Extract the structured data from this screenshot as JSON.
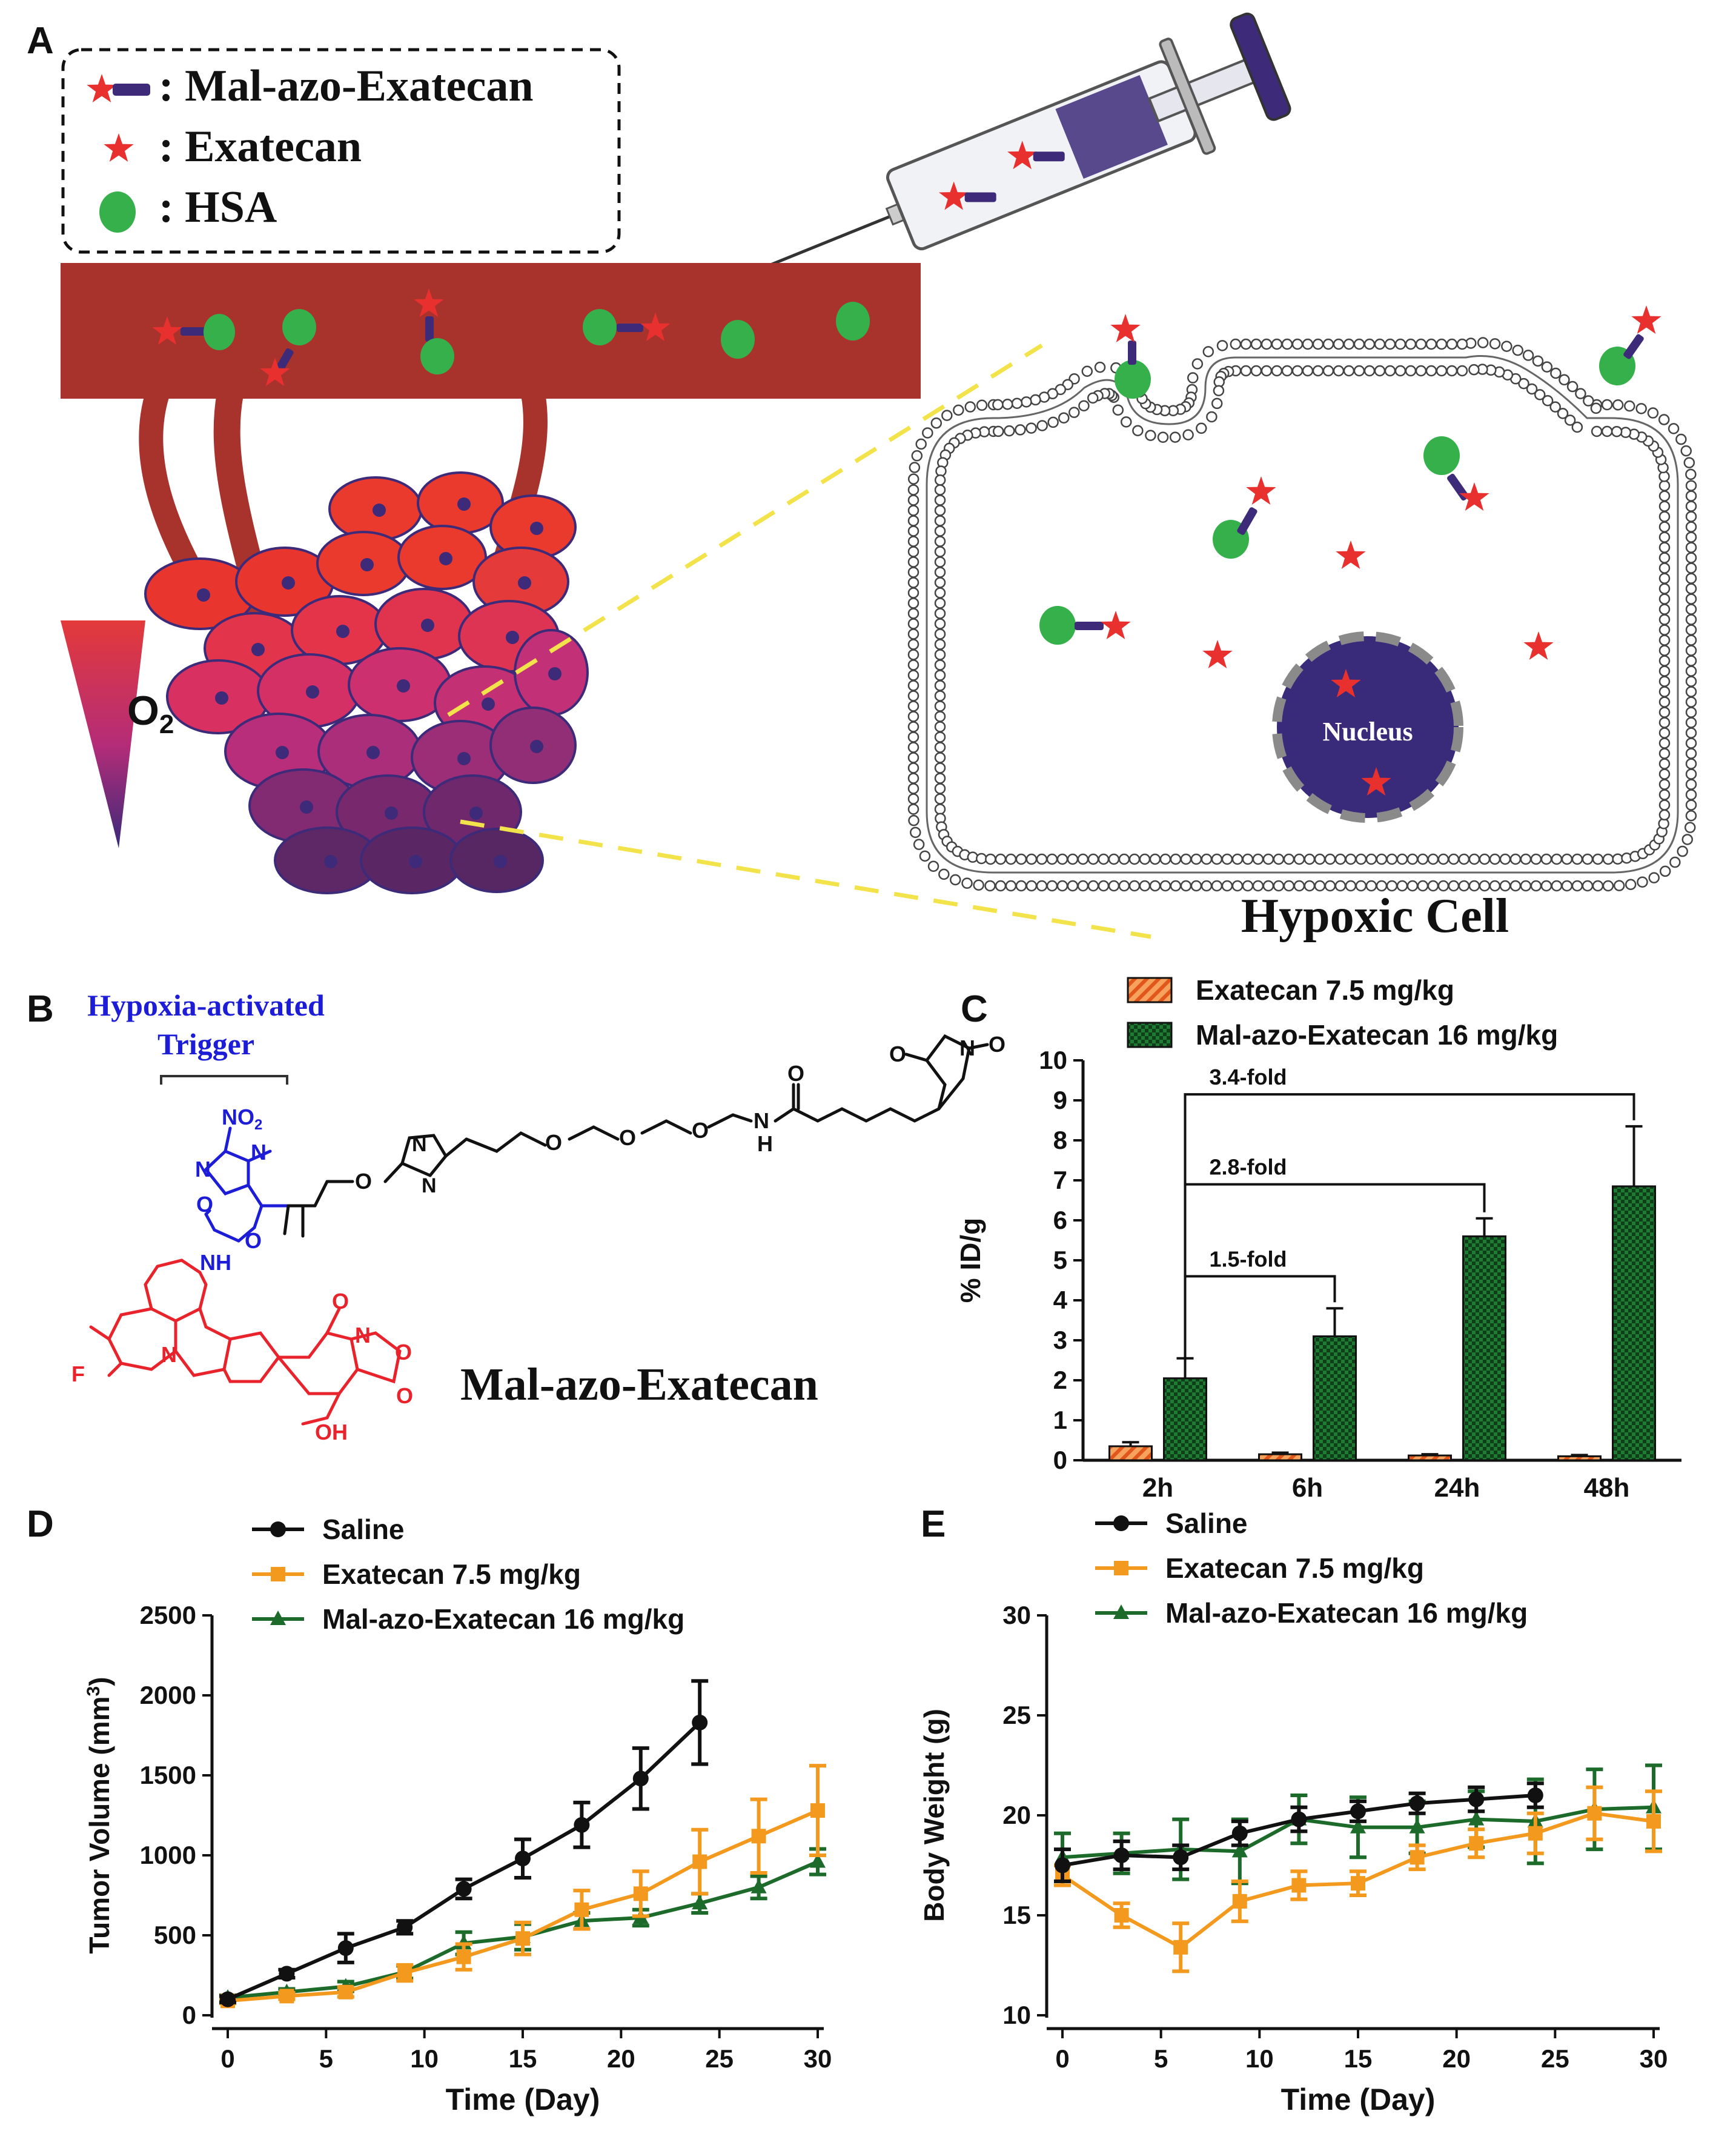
{
  "panels": {
    "a": {
      "letter": "A",
      "legend": [
        {
          "label": ": Mal-azo-Exatecan"
        },
        {
          "label": ": Exatecan"
        },
        {
          "label": ": HSA"
        }
      ],
      "o2_label": "O",
      "o2_sub": "2",
      "nucleus_label": "Nucleus",
      "cell_label": "Hypoxic Cell"
    },
    "b": {
      "letter": "B",
      "trigger_line1": "Hypoxia-activated",
      "trigger_line2": "Trigger",
      "compound_name": "Mal-azo-Exatecan",
      "atoms": {
        "no2": "NO",
        "no2_sub": "2",
        "n": "N",
        "o": "O",
        "nh": "NH",
        "h": "H",
        "f": "F",
        "oh": "OH"
      }
    },
    "c": {
      "letter": "C"
    },
    "d": {
      "letter": "D"
    },
    "e": {
      "letter": "E"
    }
  },
  "chart_data": [
    {
      "id": "C",
      "type": "bar",
      "categories": [
        "2h",
        "6h",
        "24h",
        "48h"
      ],
      "series": [
        {
          "name": "Exatecan 7.5 mg/kg",
          "color": "#e8632b",
          "values": [
            0.35,
            0.15,
            0.12,
            0.1
          ],
          "errors": [
            0.1,
            0.04,
            0.03,
            0.03
          ]
        },
        {
          "name": "Mal-azo-Exatecan 16 mg/kg",
          "color": "#1d6b2a",
          "values": [
            2.05,
            3.1,
            5.6,
            6.85
          ],
          "errors": [
            0.5,
            0.7,
            0.45,
            1.5
          ]
        }
      ],
      "ylabel": "% ID/g",
      "xlabel": "",
      "ylim": [
        0,
        10
      ],
      "yticks": [
        0,
        1,
        2,
        3,
        4,
        5,
        6,
        7,
        8,
        9,
        10
      ],
      "annotations": [
        {
          "label": "1.5-fold",
          "from": "2h",
          "to": "6h",
          "level": 4.6
        },
        {
          "label": "2.8-fold",
          "from": "2h",
          "to": "24h",
          "level": 6.9
        },
        {
          "label": "3.4-fold",
          "from": "2h",
          "to": "48h",
          "level": 9.15
        }
      ]
    },
    {
      "id": "D",
      "type": "line",
      "x": [
        0,
        3,
        6,
        9,
        12,
        15,
        18,
        21,
        24,
        27,
        30
      ],
      "series": [
        {
          "name": "Saline",
          "color": "#111111",
          "marker": "circle",
          "values": [
            100,
            260,
            420,
            550,
            790,
            980,
            1190,
            1480,
            1830,
            null,
            null
          ],
          "errors": [
            20,
            25,
            90,
            40,
            60,
            120,
            140,
            190,
            260,
            null,
            null
          ]
        },
        {
          "name": "Exatecan 7.5 mg/kg",
          "color": "#f39a1e",
          "marker": "square",
          "values": [
            90,
            120,
            145,
            265,
            365,
            480,
            660,
            760,
            960,
            1120,
            1280
          ],
          "errors": [
            15,
            20,
            30,
            50,
            80,
            100,
            120,
            140,
            200,
            230,
            280
          ]
        },
        {
          "name": "Mal-azo-Exatecan 16 mg/kg",
          "color": "#1d6b2a",
          "marker": "triangle",
          "values": [
            110,
            145,
            180,
            270,
            450,
            490,
            590,
            610,
            700,
            800,
            960
          ],
          "errors": [
            15,
            20,
            30,
            40,
            70,
            80,
            50,
            50,
            60,
            70,
            80
          ]
        }
      ],
      "xlabel": "Time (Day)",
      "ylabel": "Tumor Volume (mm",
      "ylabel_sup": "3",
      "ylabel_end": ")",
      "xlim": [
        0,
        30
      ],
      "ylim": [
        0,
        2500
      ],
      "xticks": [
        0,
        5,
        10,
        15,
        20,
        25,
        30
      ],
      "yticks": [
        0,
        500,
        1000,
        1500,
        2000,
        2500
      ]
    },
    {
      "id": "E",
      "type": "line",
      "x": [
        0,
        3,
        6,
        9,
        12,
        15,
        18,
        21,
        24,
        27,
        30
      ],
      "series": [
        {
          "name": "Saline",
          "color": "#111111",
          "marker": "circle",
          "values": [
            17.5,
            18.0,
            17.9,
            19.1,
            19.8,
            20.2,
            20.6,
            20.8,
            21.0,
            null,
            null
          ],
          "errors": [
            0.8,
            0.7,
            0.6,
            0.6,
            0.6,
            0.5,
            0.5,
            0.6,
            0.6,
            null,
            null
          ]
        },
        {
          "name": "Exatecan 7.5 mg/kg",
          "color": "#f39a1e",
          "marker": "square",
          "values": [
            17.0,
            15.0,
            13.4,
            15.7,
            16.5,
            16.6,
            17.9,
            18.6,
            19.1,
            20.1,
            19.7
          ],
          "errors": [
            0.5,
            0.6,
            1.2,
            1.0,
            0.7,
            0.6,
            0.6,
            0.7,
            1.0,
            1.3,
            1.5
          ]
        },
        {
          "name": "Mal-azo-Exatecan 16 mg/kg",
          "color": "#1d6b2a",
          "marker": "triangle",
          "values": [
            17.9,
            18.1,
            18.3,
            18.2,
            19.8,
            19.4,
            19.4,
            19.8,
            19.7,
            20.3,
            20.4
          ],
          "errors": [
            1.2,
            1.0,
            1.5,
            1.6,
            1.2,
            1.5,
            1.3,
            1.4,
            2.1,
            2.0,
            2.1
          ]
        }
      ],
      "xlabel": "Time (Day)",
      "ylabel": "Body Weight (g)",
      "xlim": [
        0,
        30
      ],
      "ylim": [
        10,
        30
      ],
      "xticks": [
        0,
        5,
        10,
        15,
        20,
        25,
        30
      ],
      "yticks": [
        10,
        15,
        20,
        25,
        30
      ]
    }
  ]
}
